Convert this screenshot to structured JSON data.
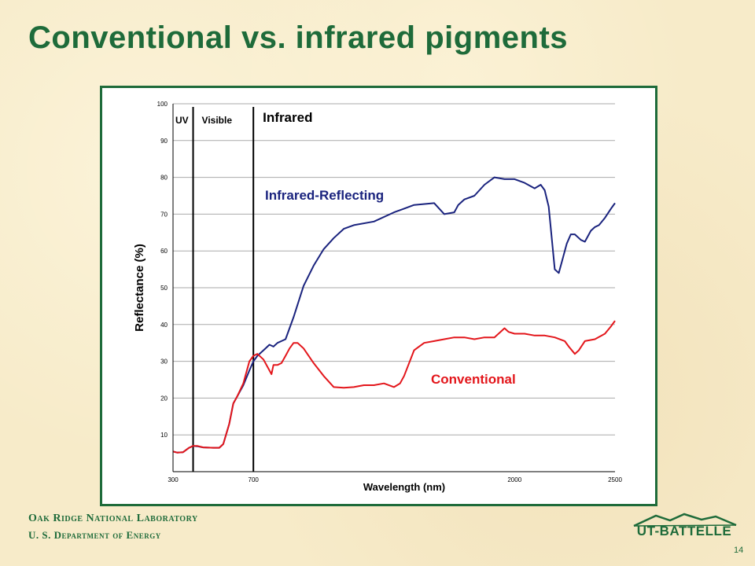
{
  "slide": {
    "title": "Conventional vs. infrared pigments",
    "footer_org": "Oak Ridge National Laboratory",
    "footer_dept": "U. S. Department of Energy",
    "logo_text": "UT-BATTELLE",
    "page_number": "14"
  },
  "colors": {
    "title_green": "#1e6b3a",
    "infrared_series": "#1a237e",
    "conventional_series": "#e3161b",
    "grid": "#aaaaaa"
  },
  "chart_data": {
    "type": "line",
    "title": "",
    "xlabel": "Wavelength (nm)",
    "ylabel": "Reflectance (%)",
    "xlim": [
      300,
      2500
    ],
    "ylim": [
      0,
      100
    ],
    "x_ticks": [
      300,
      700,
      2000,
      2500
    ],
    "y_ticks": [
      10,
      20,
      30,
      40,
      50,
      60,
      70,
      80,
      90,
      100
    ],
    "grid": true,
    "regions": [
      {
        "label": "UV",
        "x_start": 300,
        "x_end": 400
      },
      {
        "label": "Visible",
        "x_start": 400,
        "x_end": 700
      },
      {
        "label": "Infrared",
        "x_start": 700,
        "x_end": 2500
      }
    ],
    "region_boundaries": [
      400,
      700
    ],
    "series": [
      {
        "name": "Infrared-Reflecting",
        "color": "#1a237e",
        "x": [
          300,
          320,
          350,
          380,
          400,
          420,
          450,
          500,
          530,
          550,
          580,
          600,
          620,
          650,
          680,
          700,
          720,
          750,
          770,
          780,
          800,
          820,
          840,
          860,
          900,
          950,
          1000,
          1050,
          1100,
          1150,
          1200,
          1300,
          1400,
          1450,
          1500,
          1600,
          1650,
          1700,
          1720,
          1750,
          1800,
          1850,
          1900,
          1950,
          1970,
          2000,
          2050,
          2100,
          2130,
          2150,
          2170,
          2200,
          2220,
          2240,
          2260,
          2280,
          2300,
          2330,
          2350,
          2380,
          2400,
          2420,
          2450,
          2480,
          2500
        ],
        "y": [
          5.5,
          5.2,
          5.3,
          6.5,
          7.0,
          6.9,
          6.6,
          6.5,
          6.5,
          7.5,
          13.0,
          18.5,
          20.5,
          23.5,
          27.5,
          30.0,
          31.5,
          33.0,
          34.0,
          34.5,
          34.0,
          35.0,
          35.5,
          36.0,
          42.0,
          50.5,
          56.0,
          60.5,
          63.5,
          66.0,
          67.0,
          68.0,
          70.5,
          71.5,
          72.5,
          73.0,
          70.0,
          70.5,
          72.5,
          74.0,
          75.0,
          78.0,
          80.0,
          79.5,
          79.5,
          79.5,
          78.5,
          77.0,
          78.0,
          76.5,
          72.0,
          55.0,
          54.0,
          58.0,
          62.0,
          64.5,
          64.5,
          63.0,
          62.5,
          65.5,
          66.5,
          67.0,
          69.0,
          71.5,
          73.0
        ]
      },
      {
        "name": "Conventional",
        "color": "#e3161b",
        "x": [
          300,
          320,
          350,
          380,
          400,
          420,
          450,
          500,
          530,
          550,
          580,
          600,
          620,
          650,
          680,
          700,
          720,
          750,
          770,
          790,
          800,
          820,
          840,
          860,
          880,
          900,
          920,
          950,
          1000,
          1050,
          1100,
          1150,
          1200,
          1250,
          1300,
          1350,
          1400,
          1430,
          1450,
          1500,
          1550,
          1600,
          1650,
          1700,
          1750,
          1800,
          1850,
          1900,
          1930,
          1950,
          1970,
          2000,
          2050,
          2100,
          2150,
          2200,
          2250,
          2270,
          2300,
          2320,
          2350,
          2400,
          2450,
          2480,
          2500
        ],
        "y": [
          5.5,
          5.2,
          5.3,
          6.5,
          7.0,
          7.0,
          6.6,
          6.5,
          6.5,
          7.5,
          13.0,
          18.5,
          20.5,
          24.0,
          30.0,
          31.5,
          32.0,
          30.5,
          28.5,
          26.5,
          29.0,
          29.0,
          29.5,
          31.5,
          33.5,
          35.0,
          35.0,
          33.5,
          29.5,
          26.0,
          23.0,
          22.8,
          23.0,
          23.5,
          23.5,
          24.0,
          23.0,
          24.0,
          26.0,
          33.0,
          35.0,
          35.5,
          36.0,
          36.5,
          36.5,
          36.0,
          36.5,
          36.5,
          38.0,
          39.0,
          38.0,
          37.5,
          37.5,
          37.0,
          37.0,
          36.5,
          35.5,
          34.0,
          32.0,
          33.0,
          35.5,
          36.0,
          37.5,
          39.5,
          41.0
        ]
      }
    ],
    "annotations": [
      "Infrared-Reflecting",
      "Conventional"
    ]
  }
}
